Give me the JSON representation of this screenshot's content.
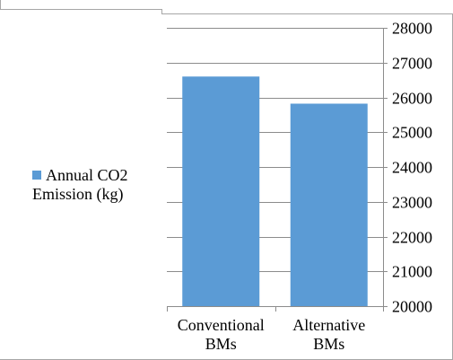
{
  "chart_data": {
    "type": "bar",
    "categories": [
      [
        "Conventional",
        "BMs"
      ],
      [
        "Alternative",
        "BMs"
      ]
    ],
    "series": [
      {
        "name": "Annual CO2 Emission (kg)",
        "values": [
          26600,
          25820
        ],
        "color": "#5b9bd5"
      }
    ],
    "legend": {
      "position": "left",
      "lines": [
        "Annual CO2",
        "Emission (kg)"
      ]
    },
    "y_axis": {
      "side": "right",
      "ylim": [
        20000,
        28000
      ],
      "ticks": [
        20000,
        21000,
        22000,
        23000,
        24000,
        25000,
        26000,
        27000,
        28000
      ]
    },
    "grid": true,
    "title": "",
    "xlabel": "",
    "ylabel": ""
  }
}
